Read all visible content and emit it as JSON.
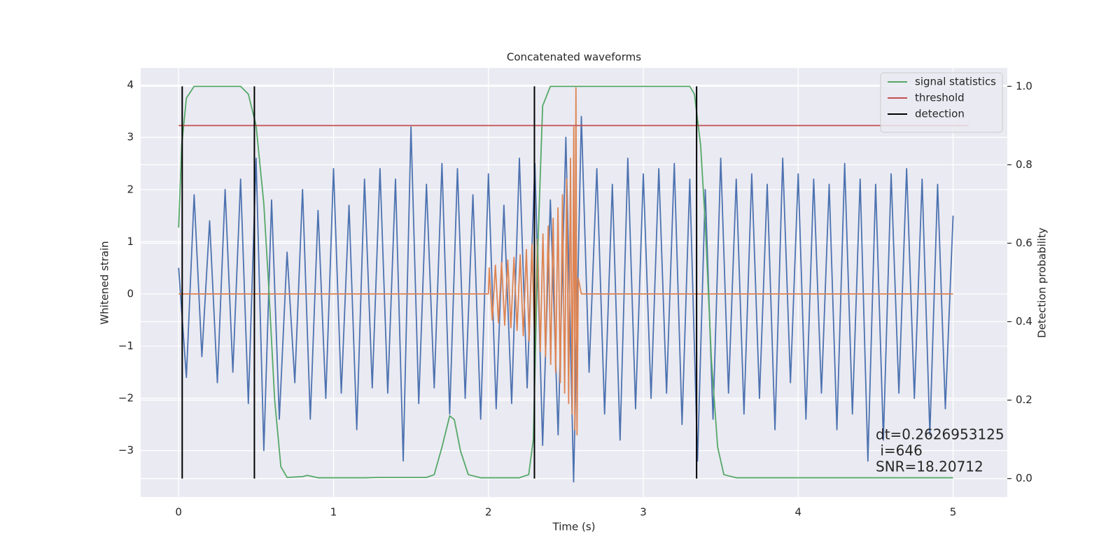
{
  "chart_data": {
    "type": "line",
    "title": "Concatenated waveforms",
    "xlabel": "Time (s)",
    "ylabel": "Whitened strain",
    "y2label": "Detection probability",
    "xlim": [
      -0.245,
      5.35
    ],
    "ylim": [
      -3.89,
      4.33
    ],
    "y2lim": [
      -0.047,
      1.047
    ],
    "xticks": [
      0,
      1,
      2,
      3,
      4,
      5
    ],
    "yticks": [
      {
        "value": -3,
        "label": "−3"
      },
      {
        "value": -2,
        "label": "−2"
      },
      {
        "value": -1,
        "label": "−1"
      },
      0,
      1,
      2,
      3,
      4
    ],
    "y2ticks": [
      {
        "value": 0,
        "label": "0.0"
      },
      0.2,
      0.4,
      0.6,
      0.8,
      {
        "value": 1,
        "label": "1.0"
      }
    ],
    "grid": true,
    "legend": "upper right",
    "series": [
      {
        "color": "#4c72b0",
        "axis": "y",
        "x": [
          0,
          0.05,
          0.1,
          0.15,
          0.2,
          0.25,
          0.3,
          0.35,
          0.4,
          0.45,
          0.5,
          0.55,
          0.6,
          0.65,
          0.7,
          0.75,
          0.8,
          0.85,
          0.9,
          0.95,
          1,
          1.05,
          1.1,
          1.15,
          1.2,
          1.25,
          1.3,
          1.35,
          1.4,
          1.45,
          1.5,
          1.55,
          1.6,
          1.65,
          1.7,
          1.75,
          1.8,
          1.85,
          1.9,
          1.95,
          2,
          2.05,
          2.1,
          2.15,
          2.2,
          2.25,
          2.3,
          2.35,
          2.4,
          2.45,
          2.5,
          2.55,
          2.6,
          2.65,
          2.7,
          2.75,
          2.8,
          2.85,
          2.9,
          2.95,
          3,
          3.05,
          3.1,
          3.15,
          3.2,
          3.25,
          3.3,
          3.35,
          3.4,
          3.45,
          3.5,
          3.55,
          3.6,
          3.65,
          3.7,
          3.75,
          3.8,
          3.85,
          3.9,
          3.95,
          4,
          4.05,
          4.1,
          4.15,
          4.2,
          4.25,
          4.3,
          4.35,
          4.4,
          4.45,
          4.5,
          4.55,
          4.6,
          4.65,
          4.7,
          4.75,
          4.8,
          4.85,
          4.9,
          4.95,
          5
        ],
        "values": [
          0.5,
          -1.6,
          1.9,
          -1.2,
          1.4,
          -1.7,
          2.0,
          -1.5,
          2.2,
          -2.1,
          2.6,
          -3.0,
          1.8,
          -2.4,
          0.8,
          -1.7,
          2.0,
          -2.4,
          1.6,
          -2.0,
          2.4,
          -1.9,
          1.7,
          -2.6,
          2.2,
          -1.8,
          2.4,
          -1.9,
          2.2,
          -3.2,
          3.2,
          -2.1,
          2.1,
          -1.8,
          2.5,
          -2.3,
          2.4,
          -2.0,
          1.9,
          -2.4,
          2.3,
          -2.2,
          1.7,
          -2.1,
          2.6,
          -1.8,
          2.5,
          -2.9,
          1.8,
          -2.7,
          3.0,
          -3.6,
          3.4,
          -1.5,
          2.4,
          -2.3,
          2.1,
          -2.8,
          2.6,
          -2.2,
          2.3,
          -2.0,
          2.4,
          -1.9,
          2.5,
          -2.5,
          2.2,
          -3.2,
          2.0,
          -2.4,
          2.6,
          -1.9,
          2.2,
          -2.3,
          2.3,
          -2.0,
          2.1,
          -2.6,
          2.6,
          -1.7,
          2.3,
          -2.4,
          2.2,
          -1.9,
          2.1,
          -2.6,
          2.5,
          -2.3,
          2.2,
          -3.2,
          2.1,
          -2.8,
          2.3,
          -1.9,
          2.4,
          -2.0,
          2.2,
          -2.7,
          2.1,
          -2.2,
          1.5
        ]
      },
      {
        "color": "#dd8452",
        "axis": "y",
        "x": [
          0,
          2,
          2.005,
          2.025,
          2.045,
          2.065,
          2.085,
          2.105,
          2.125,
          2.145,
          2.165,
          2.185,
          2.205,
          2.225,
          2.245,
          2.263,
          2.281,
          2.299,
          2.317,
          2.335,
          2.352,
          2.369,
          2.386,
          2.402,
          2.418,
          2.434,
          2.449,
          2.464,
          2.478,
          2.492,
          2.505,
          2.518,
          2.53,
          2.541,
          2.551,
          2.558,
          2.565,
          2.572,
          2.58,
          2.6,
          5
        ],
        "values": [
          0,
          0,
          0.5,
          -0.5,
          0.55,
          -0.55,
          0.6,
          -0.6,
          0.65,
          -0.65,
          0.7,
          -0.7,
          0.75,
          -0.8,
          0.85,
          -0.9,
          0.95,
          -1.0,
          1.05,
          -1.1,
          1.15,
          -1.2,
          1.3,
          -1.35,
          1.45,
          -1.5,
          1.65,
          -1.7,
          1.9,
          -1.9,
          2.2,
          -2.1,
          2.6,
          -2.3,
          3.2,
          -2.6,
          3.95,
          -2.7,
          0.3,
          0,
          0
        ]
      },
      {
        "name": "signal statistics",
        "color": "#55a868",
        "axis": "y2",
        "x": [
          0,
          0.02,
          0.05,
          0.1,
          0.4,
          0.45,
          0.5,
          0.55,
          0.58,
          0.62,
          0.66,
          0.7,
          0.8,
          0.83,
          0.9,
          1.2,
          1.3,
          1.6,
          1.65,
          1.7,
          1.75,
          1.78,
          1.82,
          1.87,
          1.95,
          2.2,
          2.26,
          2.29,
          2.32,
          2.35,
          2.4,
          3.3,
          3.33,
          3.37,
          3.4,
          3.44,
          3.48,
          3.52,
          3.6,
          5
        ],
        "values": [
          0.64,
          0.85,
          0.97,
          1.0,
          1.0,
          0.98,
          0.9,
          0.7,
          0.5,
          0.2,
          0.03,
          0.003,
          0.005,
          0.008,
          0.002,
          0.002,
          0.003,
          0.003,
          0.01,
          0.08,
          0.16,
          0.15,
          0.07,
          0.01,
          0.002,
          0.002,
          0.01,
          0.1,
          0.6,
          0.95,
          1.0,
          1.0,
          0.98,
          0.85,
          0.65,
          0.3,
          0.08,
          0.01,
          0.002,
          0.002
        ]
      },
      {
        "name": "threshold",
        "color": "#c44e52",
        "axis": "y2",
        "x": [
          0,
          5.1
        ],
        "values": [
          0.9,
          0.9
        ]
      },
      {
        "name": "detection",
        "color": "#000000",
        "axis": "y2",
        "type": "vlines",
        "x": [
          0.023,
          0.489,
          2.297,
          3.344
        ],
        "ymin": 0,
        "ymax": 1
      }
    ],
    "annotation": [
      "dt=0.2626953125",
      " i=646",
      "SNR=18.20712"
    ]
  }
}
